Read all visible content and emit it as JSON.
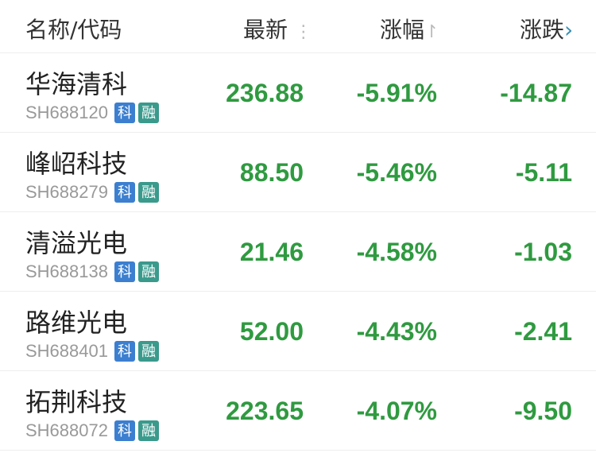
{
  "header": {
    "name": "名称/代码",
    "latest": "最新",
    "change_pct": "涨幅",
    "change": "涨跌",
    "latest_icon": "more-vertical-icon",
    "sort_icon": "sort-arrow-icon",
    "next_icon": "chevron-right-icon"
  },
  "colors": {
    "down": "#2f9a40",
    "badge_ke": "#3c7fd0",
    "badge_rong": "#3a9a8c"
  },
  "rows": [
    {
      "name": "华海清科",
      "code": "SH688120",
      "b1": "科",
      "b2": "融",
      "price": "236.88",
      "pct": "-5.91%",
      "chg": "-14.87"
    },
    {
      "name": "峰岹科技",
      "code": "SH688279",
      "b1": "科",
      "b2": "融",
      "price": "88.50",
      "pct": "-5.46%",
      "chg": "-5.11"
    },
    {
      "name": "清溢光电",
      "code": "SH688138",
      "b1": "科",
      "b2": "融",
      "price": "21.46",
      "pct": "-4.58%",
      "chg": "-1.03"
    },
    {
      "name": "路维光电",
      "code": "SH688401",
      "b1": "科",
      "b2": "融",
      "price": "52.00",
      "pct": "-4.43%",
      "chg": "-2.41"
    },
    {
      "name": "拓荆科技",
      "code": "SH688072",
      "b1": "科",
      "b2": "融",
      "price": "223.65",
      "pct": "-4.07%",
      "chg": "-9.50"
    }
  ]
}
